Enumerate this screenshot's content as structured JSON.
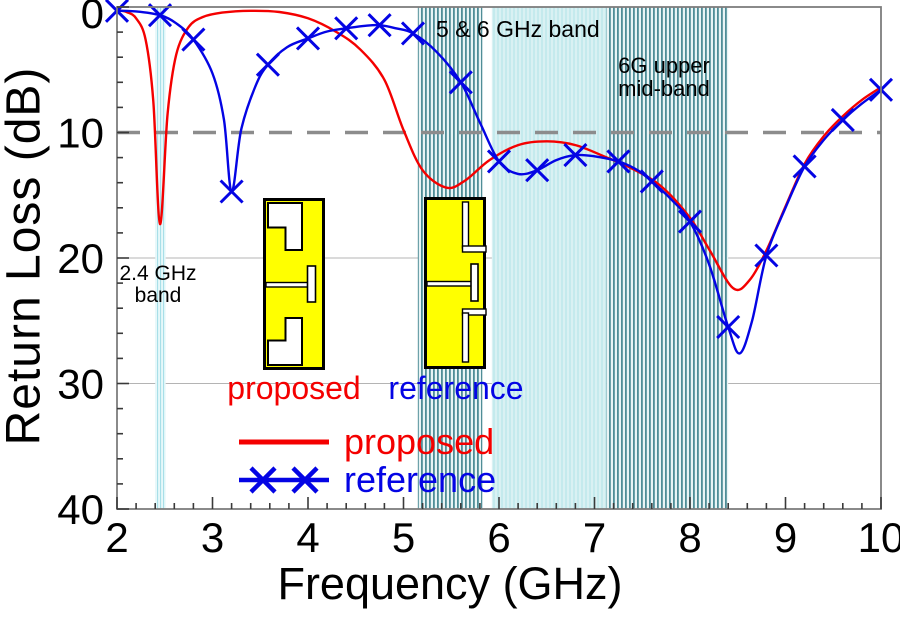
{
  "chart_data": {
    "type": "line",
    "title": "",
    "xlabel": "Frequency (GHz)",
    "ylabel": "Return Loss (dB)",
    "xlim": [
      2,
      10
    ],
    "ylim": [
      0,
      40
    ],
    "y_axis_inverted_downward": true,
    "x_ticks": [
      2,
      3,
      4,
      5,
      6,
      7,
      8,
      9,
      10
    ],
    "y_ticks": [
      0,
      10,
      20,
      30,
      40
    ],
    "x_minor_step": 0.2,
    "y_minor_step": 2,
    "grid": {
      "solid_y": [
        20,
        30
      ],
      "solid_color": "#b4b4b4",
      "dashed_y": 10,
      "dashed_color": "#8c8c8c"
    },
    "series": [
      {
        "name": "proposed",
        "color": "#f40000",
        "points": [
          [
            2.0,
            0.25
          ],
          [
            2.1,
            0.4
          ],
          [
            2.2,
            0.9
          ],
          [
            2.3,
            2.6
          ],
          [
            2.38,
            7.5
          ],
          [
            2.45,
            17.3
          ],
          [
            2.53,
            8.5
          ],
          [
            2.62,
            3.8
          ],
          [
            2.75,
            1.6
          ],
          [
            2.9,
            0.8
          ],
          [
            3.1,
            0.45
          ],
          [
            3.4,
            0.3
          ],
          [
            3.7,
            0.4
          ],
          [
            4.0,
            0.9
          ],
          [
            4.3,
            2.0
          ],
          [
            4.55,
            3.4
          ],
          [
            4.8,
            5.8
          ],
          [
            5.0,
            9.8
          ],
          [
            5.2,
            13.0
          ],
          [
            5.45,
            14.4
          ],
          [
            5.65,
            13.8
          ],
          [
            5.9,
            12.2
          ],
          [
            6.2,
            11.0
          ],
          [
            6.5,
            10.7
          ],
          [
            6.8,
            11.0
          ],
          [
            7.1,
            11.9
          ],
          [
            7.4,
            12.9
          ],
          [
            7.7,
            14.3
          ],
          [
            8.0,
            16.8
          ],
          [
            8.2,
            19.3
          ],
          [
            8.45,
            22.4
          ],
          [
            8.62,
            21.8
          ],
          [
            8.8,
            19.4
          ],
          [
            9.0,
            15.9
          ],
          [
            9.2,
            12.5
          ],
          [
            9.4,
            10.3
          ],
          [
            9.6,
            8.7
          ],
          [
            9.8,
            7.4
          ],
          [
            10.0,
            6.4
          ]
        ]
      },
      {
        "name": "reference",
        "color": "#0404e4",
        "points": [
          [
            2.0,
            0.3
          ],
          [
            2.2,
            0.35
          ],
          [
            2.45,
            0.65
          ],
          [
            2.62,
            1.3
          ],
          [
            2.8,
            2.6
          ],
          [
            3.0,
            5.3
          ],
          [
            3.12,
            9.0
          ],
          [
            3.2,
            14.7
          ],
          [
            3.3,
            9.8
          ],
          [
            3.45,
            6.3
          ],
          [
            3.58,
            4.6
          ],
          [
            3.78,
            3.2
          ],
          [
            4.0,
            2.5
          ],
          [
            4.2,
            1.95
          ],
          [
            4.4,
            1.7
          ],
          [
            4.6,
            1.5
          ],
          [
            4.75,
            1.45
          ],
          [
            4.92,
            1.7
          ],
          [
            5.1,
            2.1
          ],
          [
            5.35,
            3.6
          ],
          [
            5.6,
            6.0
          ],
          [
            5.8,
            9.2
          ],
          [
            6.0,
            12.3
          ],
          [
            6.2,
            13.3
          ],
          [
            6.4,
            13.0
          ],
          [
            6.6,
            12.2
          ],
          [
            6.8,
            11.8
          ],
          [
            7.0,
            11.9
          ],
          [
            7.25,
            12.3
          ],
          [
            7.45,
            13.0
          ],
          [
            7.6,
            13.9
          ],
          [
            7.8,
            15.3
          ],
          [
            8.0,
            17.1
          ],
          [
            8.2,
            20.5
          ],
          [
            8.4,
            25.5
          ],
          [
            8.52,
            27.6
          ],
          [
            8.65,
            25.0
          ],
          [
            8.8,
            19.8
          ],
          [
            9.0,
            16.0
          ],
          [
            9.2,
            12.7
          ],
          [
            9.4,
            10.6
          ],
          [
            9.6,
            9.0
          ],
          [
            9.8,
            7.7
          ],
          [
            10.0,
            6.6
          ]
        ],
        "markers": [
          [
            2.0,
            0.3
          ],
          [
            2.45,
            0.65
          ],
          [
            2.8,
            2.6
          ],
          [
            3.2,
            14.7
          ],
          [
            3.58,
            4.6
          ],
          [
            4.0,
            2.5
          ],
          [
            4.4,
            1.7
          ],
          [
            4.75,
            1.45
          ],
          [
            5.1,
            2.1
          ],
          [
            5.6,
            6.0
          ],
          [
            6.0,
            12.3
          ],
          [
            6.4,
            13.0
          ],
          [
            6.8,
            11.8
          ],
          [
            7.25,
            12.3
          ],
          [
            7.6,
            13.9
          ],
          [
            8.0,
            17.1
          ],
          [
            8.4,
            25.5
          ],
          [
            8.8,
            19.8
          ],
          [
            9.2,
            12.7
          ],
          [
            9.6,
            9.0
          ],
          [
            10.0,
            6.6
          ]
        ]
      }
    ],
    "bands": [
      {
        "label": "2.4 GHz band",
        "range_ghz": [
          2.4,
          2.51
        ],
        "style": "stripe-24"
      },
      {
        "label": "5 GHz band",
        "range_ghz": [
          5.15,
          5.825
        ],
        "style": "hatch-teal"
      },
      {
        "label": "6 GHz band",
        "range_ghz": [
          5.925,
          7.125
        ],
        "style": "stripe-cyan"
      },
      {
        "label": "6G upper mid-band",
        "range_ghz": [
          7.125,
          8.4
        ],
        "style": "hatch-teal"
      }
    ],
    "legend_position": "inside-bottom-left"
  },
  "annotations": {
    "band_24": {
      "line1": "2.4 GHz",
      "line2": "band"
    },
    "band_5_6": {
      "text": "5 & 6 GHz band"
    },
    "band_6g": {
      "line1": "6G upper",
      "line2": "mid-band"
    }
  },
  "insets": {
    "proposed": {
      "label": "proposed",
      "label_color": "#f40000",
      "patch_color": "#ffff00"
    },
    "reference": {
      "label": "reference",
      "label_color": "#0404e4",
      "patch_color": "#ffff00"
    }
  },
  "legend": {
    "items": [
      {
        "label": "proposed",
        "color": "#f40000",
        "marker": "line"
      },
      {
        "label": "reference",
        "color": "#0404e4",
        "marker": "line-with-x"
      }
    ]
  }
}
